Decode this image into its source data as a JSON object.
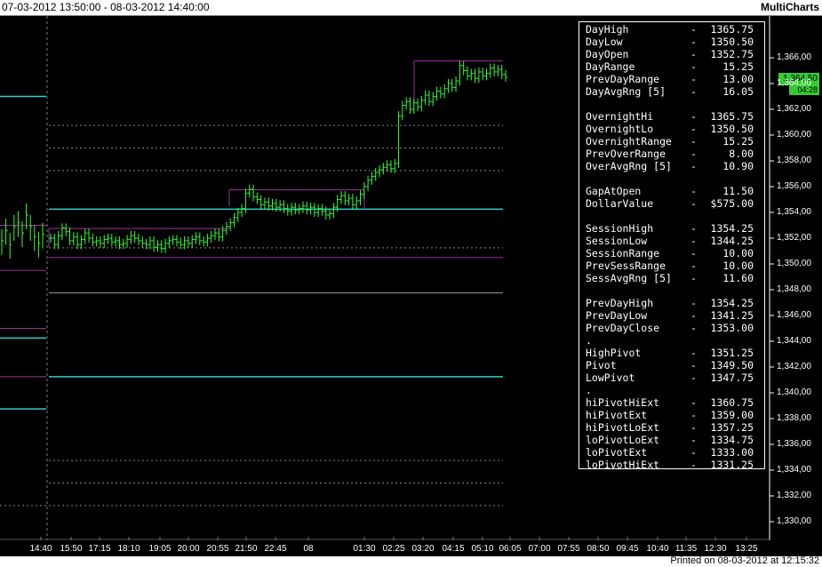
{
  "header": {
    "date_range": "07-03-2012 13:50:00 - 08-03-2012 14:40:00",
    "brand": "MultiCharts"
  },
  "footer": {
    "printed": "Printed on 08-03-2012 at 12:15:32"
  },
  "badges": {
    "last_price": "1,364.50",
    "last_time": "04:28"
  },
  "colors": {
    "bar": "#33ff33",
    "cyan": "#33cccc",
    "magenta": "#993399",
    "dotted": "#888888",
    "axis": "#ffffff"
  },
  "stats": {
    "rows": [
      [
        "DayHigh",
        "1365.75"
      ],
      [
        "DayLow",
        "1350.50"
      ],
      [
        "DayOpen",
        "1352.75"
      ],
      [
        "DayRange",
        "15.25"
      ],
      [
        "PrevDayRange",
        "13.00"
      ],
      [
        "DayAvgRng [5]",
        "16.05"
      ],
      [
        "",
        ""
      ],
      [
        "OvernightHi",
        "1365.75"
      ],
      [
        "OvernightLo",
        "1350.50"
      ],
      [
        "OvernightRange",
        "15.25"
      ],
      [
        "PrevOverRange",
        "8.00"
      ],
      [
        "OverAvgRng [5]",
        "10.90"
      ],
      [
        "",
        ""
      ],
      [
        "GapAtOpen",
        "11.50"
      ],
      [
        "DollarValue",
        "$575.00"
      ],
      [
        "",
        ""
      ],
      [
        "SessionHigh",
        "1354.25"
      ],
      [
        "SessionLow",
        "1344.25"
      ],
      [
        "SessionRange",
        "10.00"
      ],
      [
        "PrevSessRange",
        "10.00"
      ],
      [
        "SessAvgRng [5]",
        "11.60"
      ],
      [
        "",
        ""
      ],
      [
        "PrevDayHigh",
        "1354.25"
      ],
      [
        "PrevDayLow",
        "1341.25"
      ],
      [
        "PrevDayClose",
        "1353.00"
      ],
      [
        ".",
        ""
      ],
      [
        "HighPivot",
        "1351.25"
      ],
      [
        "Pivot",
        "1349.50"
      ],
      [
        "LowPivot",
        "1347.75"
      ],
      [
        ".",
        ""
      ],
      [
        "hiPivotHiExt",
        "1360.75"
      ],
      [
        "hiPivotExt",
        "1359.00"
      ],
      [
        "hiPivotLoExt",
        "1357.25"
      ],
      [
        "loPivotLoExt",
        "1334.75"
      ],
      [
        "loPivotExt",
        "1333.00"
      ],
      [
        "loPivotHiExt",
        "1331.25"
      ]
    ],
    "dash": "-"
  },
  "y_axis": {
    "labels": [
      "1,366,00",
      "1,364,00",
      "1,362,00",
      "1,360,00",
      "1,358,00",
      "1,356,00",
      "1,354,00",
      "1,352,00",
      "1,350,00",
      "1,348,00",
      "1,346,00",
      "1,344,00",
      "1,342,00",
      "1,340,00",
      "1,338,00",
      "1,336,00",
      "1,334,00",
      "1,332,00",
      "1,330,00"
    ],
    "min": 1330,
    "max": 1366
  },
  "x_axis": {
    "labels": [
      "14:40",
      "15:50",
      "17:15",
      "18:10",
      "19:05",
      "20:00",
      "20:55",
      "21:50",
      "22:45",
      "08",
      "01:30",
      "02:25",
      "03:20",
      "04:15",
      "05:10",
      "06:05",
      "07:00",
      "07:55",
      "08:50",
      "09:45",
      "10:40",
      "11:35",
      "12:30",
      "13:25"
    ]
  },
  "chart_data": {
    "type": "bar",
    "title": "",
    "xlabel": "",
    "ylabel": "",
    "ylim": [
      1329,
      1367
    ],
    "price_close_series": [
      1352.0,
      1351.5,
      1352.2,
      1352.8,
      1352.5,
      1351.8,
      1352.1,
      1351.5,
      1351.9,
      1352.4,
      1352.0,
      1351.7,
      1351.8,
      1351.6,
      1351.9,
      1352.0,
      1351.7,
      1351.8,
      1351.5,
      1351.6,
      1351.9,
      1352.2,
      1352.0,
      1351.8,
      1351.6,
      1351.5,
      1351.8,
      1351.3,
      1351.5,
      1351.2,
      1351.6,
      1351.8,
      1351.9,
      1351.7,
      1351.5,
      1351.8,
      1351.6,
      1351.9,
      1352.1,
      1351.8,
      1351.7,
      1352.0,
      1352.2,
      1352.4,
      1352.1,
      1352.6,
      1352.9,
      1353.2,
      1353.6,
      1354.0,
      1354.3,
      1355.5,
      1355.8,
      1355.2,
      1355.0,
      1354.6,
      1354.8,
      1354.5,
      1354.7,
      1354.4,
      1354.6,
      1354.3,
      1354.1,
      1354.4,
      1354.2,
      1354.3,
      1354.5,
      1354.2,
      1354.4,
      1354.0,
      1354.3,
      1354.1,
      1353.8,
      1353.9,
      1354.4,
      1355.0,
      1355.3,
      1354.9,
      1355.1,
      1354.6,
      1354.9,
      1355.4,
      1356.0,
      1356.5,
      1356.8,
      1357.1,
      1357.3,
      1357.5,
      1357.7,
      1357.4,
      1357.8,
      1361.5,
      1362.3,
      1362.6,
      1362.0,
      1362.5,
      1362.2,
      1362.7,
      1363.1,
      1362.6,
      1363.0,
      1363.4,
      1363.2,
      1363.6,
      1364.0,
      1363.7,
      1364.2,
      1365.4,
      1365.0,
      1364.6,
      1364.8,
      1364.4,
      1364.9,
      1364.6,
      1364.8,
      1365.2,
      1364.9,
      1365.1,
      1364.7,
      1364.5
    ]
  },
  "levels": [
    {
      "price": 1365.75,
      "x1": 466,
      "x2": 566,
      "color": "magenta",
      "style": "solid"
    },
    {
      "price": 1363.0,
      "x1": 0,
      "x2": 52,
      "color": "cyan",
      "style": "solid"
    },
    {
      "price": 1360.75,
      "x1": 55,
      "x2": 566,
      "color": "dotted",
      "style": "dotted"
    },
    {
      "price": 1359.0,
      "x1": 55,
      "x2": 566,
      "color": "dotted",
      "style": "dotted"
    },
    {
      "price": 1357.25,
      "x1": 55,
      "x2": 566,
      "color": "dotted",
      "style": "dotted"
    },
    {
      "price": 1355.75,
      "x1": 258,
      "x2": 410,
      "color": "magenta",
      "style": "solid"
    },
    {
      "price": 1354.25,
      "x1": 55,
      "x2": 566,
      "color": "cyan",
      "style": "solid"
    },
    {
      "price": 1353.0,
      "x1": 0,
      "x2": 52,
      "color": "magenta",
      "style": "solid"
    },
    {
      "price": 1352.75,
      "x1": 55,
      "x2": 258,
      "color": "magenta",
      "style": "solid"
    },
    {
      "price": 1351.25,
      "x1": 55,
      "x2": 566,
      "color": "dotted",
      "style": "dotted"
    },
    {
      "price": 1350.5,
      "x1": 55,
      "x2": 566,
      "color": "magenta",
      "style": "solid"
    },
    {
      "price": 1349.5,
      "x1": 0,
      "x2": 52,
      "color": "magenta",
      "style": "solid"
    },
    {
      "price": 1347.75,
      "x1": 55,
      "x2": 566,
      "color": "gray",
      "style": "solid"
    },
    {
      "price": 1345.0,
      "x1": 0,
      "x2": 52,
      "color": "magenta",
      "style": "solid"
    },
    {
      "price": 1344.25,
      "x1": 0,
      "x2": 52,
      "color": "cyan",
      "style": "solid"
    },
    {
      "price": 1341.25,
      "x1": 0,
      "x2": 52,
      "color": "magenta",
      "style": "solid"
    },
    {
      "price": 1341.25,
      "x1": 55,
      "x2": 566,
      "color": "cyan",
      "style": "solid"
    },
    {
      "price": 1338.75,
      "x1": 0,
      "x2": 52,
      "color": "cyan",
      "style": "solid"
    },
    {
      "price": 1334.75,
      "x1": 55,
      "x2": 566,
      "color": "dotted",
      "style": "dotted"
    },
    {
      "price": 1333.0,
      "x1": 55,
      "x2": 566,
      "color": "dotted",
      "style": "dotted"
    },
    {
      "price": 1331.25,
      "x1": 0,
      "x2": 566,
      "color": "dotted",
      "style": "dotted"
    }
  ]
}
